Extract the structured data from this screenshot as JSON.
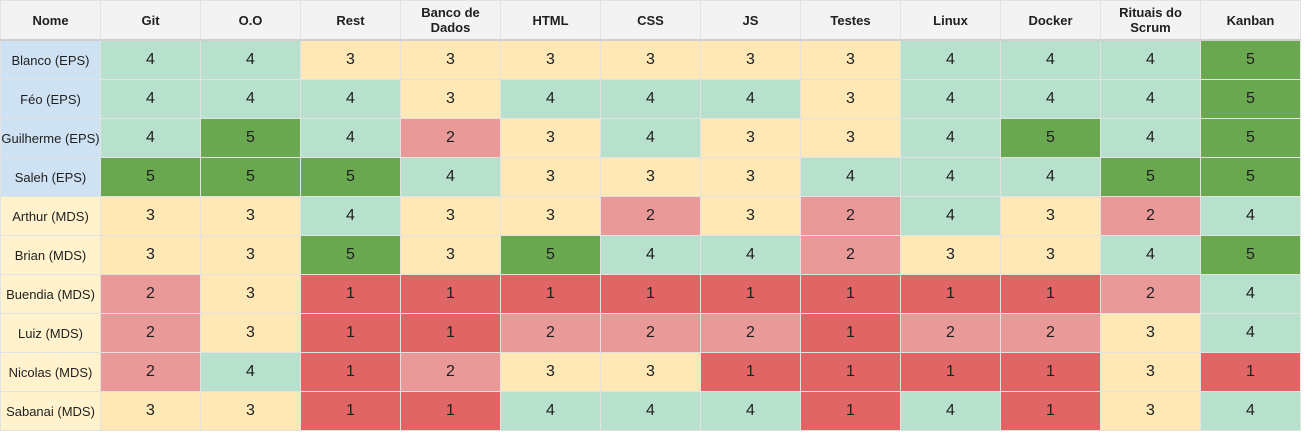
{
  "chart_data": {
    "type": "table",
    "columns": [
      "Nome",
      "Git",
      "O.O",
      "Rest",
      "Banco de Dados",
      "HTML",
      "CSS",
      "JS",
      "Testes",
      "Linux",
      "Docker",
      "Rituais do Scrum",
      "Kanban"
    ],
    "rows": [
      {
        "name": "Blanco (EPS)",
        "group": "EPS",
        "values": [
          4,
          4,
          3,
          3,
          3,
          3,
          3,
          3,
          4,
          4,
          4,
          5
        ]
      },
      {
        "name": "Féo (EPS)",
        "group": "EPS",
        "values": [
          4,
          4,
          4,
          3,
          4,
          4,
          4,
          3,
          4,
          4,
          4,
          5
        ]
      },
      {
        "name": "Guilherme (EPS)",
        "group": "EPS",
        "values": [
          4,
          5,
          4,
          2,
          3,
          4,
          3,
          3,
          4,
          5,
          4,
          5
        ]
      },
      {
        "name": "Saleh (EPS)",
        "group": "EPS",
        "values": [
          5,
          5,
          5,
          4,
          3,
          3,
          3,
          4,
          4,
          4,
          5,
          5
        ]
      },
      {
        "name": "Arthur (MDS)",
        "group": "MDS",
        "values": [
          3,
          3,
          4,
          3,
          3,
          2,
          3,
          2,
          4,
          3,
          2,
          4
        ]
      },
      {
        "name": "Brian (MDS)",
        "group": "MDS",
        "values": [
          3,
          3,
          5,
          3,
          5,
          4,
          4,
          2,
          3,
          3,
          4,
          5
        ]
      },
      {
        "name": "Buendia (MDS)",
        "group": "MDS",
        "values": [
          2,
          3,
          1,
          1,
          1,
          1,
          1,
          1,
          1,
          1,
          2,
          4
        ]
      },
      {
        "name": "Luiz (MDS)",
        "group": "MDS",
        "values": [
          2,
          3,
          1,
          1,
          2,
          2,
          2,
          1,
          2,
          2,
          3,
          4
        ]
      },
      {
        "name": "Nicolas (MDS)",
        "group": "MDS",
        "values": [
          2,
          4,
          1,
          2,
          3,
          3,
          1,
          1,
          1,
          1,
          3,
          1
        ]
      },
      {
        "name": "Sabanai (MDS)",
        "group": "MDS",
        "values": [
          3,
          3,
          1,
          1,
          4,
          4,
          4,
          1,
          4,
          1,
          3,
          4
        ]
      }
    ],
    "value_colors": {
      "1": "#e06666",
      "2": "#ea9999",
      "3": "#fde8b6",
      "4": "#b7e1cd",
      "5": "#6aa84f"
    },
    "group_colors": {
      "EPS": "#cfe2f3",
      "MDS": "#fff2cc"
    },
    "header_background": "#f3f3f3",
    "grid": true
  }
}
